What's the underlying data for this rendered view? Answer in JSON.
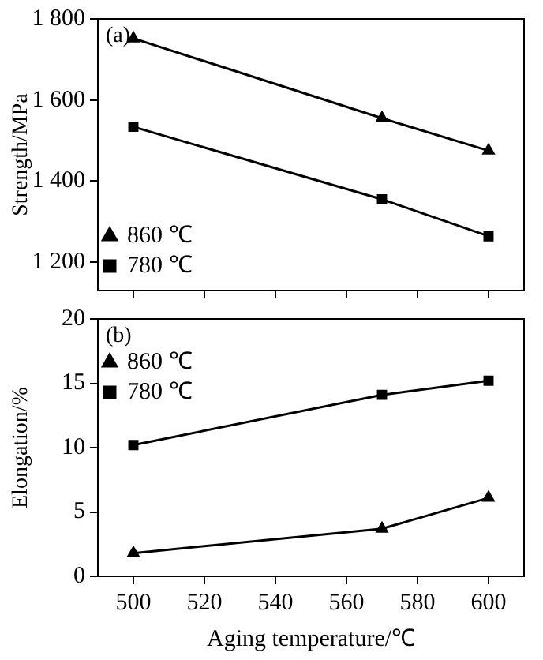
{
  "chart_data": [
    {
      "type": "line",
      "ylabel": "Strength/MPa",
      "annotations": [
        "(a)"
      ],
      "x": [
        500,
        570,
        600
      ],
      "xlim": [
        490,
        610
      ],
      "xticks": [
        500,
        520,
        540,
        560,
        580,
        600
      ],
      "ylim": [
        1130,
        1800
      ],
      "yticks": [
        {
          "value": 1200,
          "label": "1 200"
        },
        {
          "value": 1400,
          "label": "1 400"
        },
        {
          "value": 1600,
          "label": "1 600"
        },
        {
          "value": 1800,
          "label": "1 800"
        }
      ],
      "tick_labels": "y",
      "grid": false,
      "legend": "bottom left",
      "line_style": "solid",
      "series": [
        {
          "name": "860 ℃",
          "color": "#000000",
          "marker": "triangle",
          "values": [
            1752,
            1555,
            1475
          ]
        },
        {
          "name": "780 ℃",
          "color": "#000000",
          "marker": "square",
          "values": [
            1534,
            1355,
            1264
          ]
        }
      ]
    },
    {
      "type": "line",
      "ylabel": "Elongation/%",
      "xlabel": "Aging temperature/℃",
      "annotations": [
        "(b)"
      ],
      "x": [
        500,
        570,
        600
      ],
      "xlim": [
        490,
        610
      ],
      "xticks": [
        500,
        520,
        540,
        560,
        580,
        600
      ],
      "ylim": [
        0,
        20
      ],
      "yticks": [
        0,
        5,
        10,
        15,
        20
      ],
      "grid": false,
      "legend": "top left",
      "line_style": "solid",
      "series": [
        {
          "name": "860 ℃",
          "color": "#000000",
          "marker": "triangle",
          "values": [
            1.8,
            3.7,
            6.1
          ]
        },
        {
          "name": "780 ℃",
          "color": "#000000",
          "marker": "square",
          "values": [
            10.2,
            14.1,
            15.2
          ]
        }
      ]
    }
  ]
}
